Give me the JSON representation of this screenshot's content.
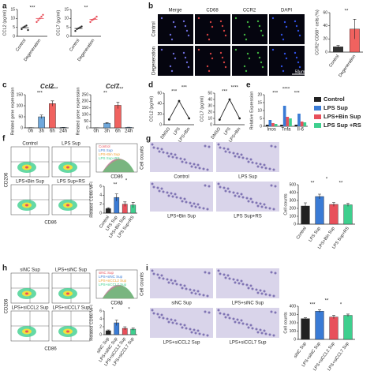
{
  "panels": [
    "a",
    "b",
    "c",
    "d",
    "e",
    "f",
    "g",
    "h",
    "i"
  ],
  "b_image": {
    "columns": [
      "Merge",
      "CD68",
      "CCR2",
      "DAPI"
    ],
    "rows": [
      "Control",
      "Degeneration"
    ],
    "scale_bar": "50μm"
  },
  "f_flow": {
    "samples": [
      "Control",
      "LPS Sup",
      "LPS+Bin Sup",
      "LPS Sup+RS"
    ],
    "y_axis": "CD206",
    "x_axis": "CD86",
    "histogram_legend": [
      "Control",
      "LPS Sup",
      "LPS+Bin Sup",
      "LPS Sup+RS"
    ],
    "histogram_y": "Cell counts",
    "histogram_x": "CD86"
  },
  "g_images": {
    "labels": [
      "Control",
      "LPS Sup",
      "LPS+Bin Sup",
      "LPS Sup+RS"
    ]
  },
  "h_flow": {
    "samples": [
      "siNC Sup",
      "LPS+siNC Sup",
      "LPS+siCCL2 Sup",
      "LPS+siCCL7 Sup"
    ],
    "y_axis": "CD206",
    "x_axis": "CD86",
    "histogram_legend": [
      "siNC Sup",
      "LPS+siNC Sup",
      "LPS+siCCL2 Sup",
      "LPS+siCCL7 Sup"
    ],
    "histogram_y": "Cell counts",
    "histogram_x": "CD86"
  },
  "i_images": {
    "labels": [
      "siNC Sup",
      "LPS+siNC Sup",
      "LPS+siCCL2 Sup",
      "LPS+siCCL7 Sup"
    ]
  },
  "chart_data": [
    {
      "type": "dot",
      "ylabel": "CCL2 (pg/ml)",
      "categories": [
        "Control",
        "Degeneration"
      ],
      "values": [
        4.8,
        10
      ],
      "points": [
        [
          4,
          5,
          5.5,
          6,
          3.5
        ],
        [
          8,
          9,
          10,
          11,
          12
        ]
      ],
      "colors": [
        "#222222",
        "#e8505b"
      ],
      "ylim": [
        0,
        15
      ],
      "yticks": [
        0,
        5,
        10,
        15
      ],
      "annotations": [
        "***"
      ]
    },
    {
      "type": "dot",
      "ylabel": "CCL7 (pg/ml)",
      "categories": [
        "Control",
        "Degeneration"
      ],
      "values": [
        4.4,
        9.5
      ],
      "points": [
        [
          3,
          4,
          4.5,
          5,
          5.5
        ],
        [
          8,
          9,
          9.5,
          10,
          11
        ]
      ],
      "colors": [
        "#222222",
        "#e8505b"
      ],
      "ylim": [
        0,
        15
      ],
      "yticks": [
        0,
        5,
        10,
        15
      ],
      "annotations": [
        "**"
      ]
    },
    {
      "type": "bar",
      "ylabel": "CCR2⁺CD68⁺ cells (%)",
      "categories": [
        "Control",
        "Degeneration"
      ],
      "values": [
        8,
        35
      ],
      "errors": [
        2,
        15
      ],
      "colors": [
        "#333333",
        "#f0625f"
      ],
      "ylim": [
        0,
        60
      ],
      "yticks": [
        0,
        20,
        40,
        60
      ],
      "annotations": [
        "**"
      ]
    },
    {
      "type": "bar",
      "title": "Ccl2",
      "ylabel": "Related gene expression",
      "categories": [
        "0h",
        "3h",
        "6h",
        "24h"
      ],
      "values": [
        1,
        50,
        110,
        2
      ],
      "errors": [
        0.2,
        8,
        12,
        0.5
      ],
      "colors": [
        "#6fa8dc",
        "#6fa8dc",
        "#f0625f",
        "#6fa8dc"
      ],
      "ylim": [
        0,
        150
      ],
      "yticks": [
        0,
        50,
        100,
        150
      ],
      "annotations": [
        "***",
        "****"
      ]
    },
    {
      "type": "bar",
      "title": "Ccl7",
      "ylabel": "Related gene expression",
      "categories": [
        "0h",
        "3h",
        "6h",
        "24h"
      ],
      "values": [
        1,
        35,
        170,
        4
      ],
      "errors": [
        0.2,
        5,
        25,
        1
      ],
      "colors": [
        "#6fa8dc",
        "#6fa8dc",
        "#f0625f",
        "#6fa8dc"
      ],
      "ylim": [
        0,
        250
      ],
      "yticks": [
        0,
        50,
        100,
        150,
        200,
        250
      ],
      "annotations": [
        "**",
        "****"
      ]
    },
    {
      "type": "line",
      "ylabel": "CCL2 (pg/ml)",
      "categories": [
        "DMSO",
        "LPS",
        "LPS+Bin"
      ],
      "values": [
        10,
        45,
        12
      ],
      "color": "#222222",
      "ylim": [
        0,
        60
      ],
      "yticks": [
        0,
        20,
        40,
        60
      ],
      "annotations": [
        "***",
        "***"
      ]
    },
    {
      "type": "line",
      "ylabel": "CCL7 (pg/ml)",
      "categories": [
        "DMSO",
        "LPS",
        "LPS+Bin"
      ],
      "values": [
        8,
        40,
        10
      ],
      "color": "#222222",
      "ylim": [
        0,
        50
      ],
      "yticks": [
        0,
        10,
        20,
        30,
        40,
        50
      ],
      "annotations": [
        "***",
        "****"
      ]
    },
    {
      "type": "grouped_bar",
      "ylabel": "Relative Expression",
      "categories": [
        "Inos",
        "Tnfa",
        "Il-6"
      ],
      "series": [
        {
          "name": "Control",
          "color": "#222222",
          "values": [
            1,
            1,
            1
          ]
        },
        {
          "name": "LPS Sup",
          "color": "#3a7bd5",
          "values": [
            4,
            13,
            8
          ]
        },
        {
          "name": "LPS+Bin Sup",
          "color": "#e8505b",
          "values": [
            2,
            6,
            3
          ]
        },
        {
          "name": "LPS Sup +RS",
          "color": "#3ecf8e",
          "values": [
            1.5,
            5,
            2.5
          ]
        }
      ],
      "ylim": [
        0,
        20
      ],
      "yticks": [
        0,
        5,
        10,
        15,
        20
      ],
      "annotations": [
        "***",
        "****",
        "***"
      ]
    },
    {
      "type": "bar",
      "ylabel": "Related CD86 MFI",
      "categories": [
        "Control",
        "LPS Sup",
        "LPS+Bin Sup",
        "LPS Sup+RS"
      ],
      "values": [
        1,
        3.5,
        2,
        1.8
      ],
      "errors": [
        0.2,
        0.8,
        0.5,
        0.6
      ],
      "colors": [
        "#222222",
        "#3a7bd5",
        "#e8505b",
        "#3ecf8e"
      ],
      "ylim": [
        0,
        6
      ],
      "yticks": [
        0,
        2,
        4,
        6
      ],
      "annotations": [
        "**",
        "*"
      ]
    },
    {
      "type": "bar",
      "ylabel": "Cell counts",
      "categories": [
        "Control",
        "LPS Sup",
        "LPS+Bin Sup",
        "LPS Sup+RS"
      ],
      "values": [
        230,
        350,
        250,
        245
      ],
      "errors": [
        40,
        30,
        25,
        20
      ],
      "colors": [
        "#222222",
        "#3a7bd5",
        "#e8505b",
        "#3ecf8e"
      ],
      "ylim": [
        0,
        500
      ],
      "yticks": [
        0,
        100,
        200,
        300,
        400,
        500
      ],
      "annotations": [
        "**",
        "*",
        "**"
      ]
    },
    {
      "type": "bar",
      "ylabel": "Related CD86 MFI",
      "categories": [
        "siNC Sup",
        "LPS+siNC Sup",
        "LPS+siCCL2 Sup",
        "LPS+siCCL7 Sup"
      ],
      "values": [
        1,
        3,
        1.6,
        1.4
      ],
      "errors": [
        0.2,
        0.7,
        0.4,
        0.3
      ],
      "colors": [
        "#222222",
        "#3a7bd5",
        "#e8505b",
        "#3ecf8e"
      ],
      "ylim": [
        0,
        6
      ],
      "yticks": [
        0,
        2,
        4,
        6
      ],
      "annotations": [
        "*",
        "*",
        "*"
      ]
    },
    {
      "type": "bar",
      "ylabel": "Cell counts",
      "categories": [
        "siNC Sup",
        "LPS+siNC Sup",
        "LPS+siCCL2 Sup",
        "LPS+siCCL7 Sup"
      ],
      "values": [
        250,
        340,
        270,
        290
      ],
      "errors": [
        10,
        15,
        20,
        15
      ],
      "colors": [
        "#222222",
        "#3a7bd5",
        "#e8505b",
        "#3ecf8e"
      ],
      "ylim": [
        0,
        400
      ],
      "yticks": [
        0,
        100,
        200,
        300,
        400
      ],
      "annotations": [
        "***",
        "**",
        "*"
      ]
    }
  ]
}
